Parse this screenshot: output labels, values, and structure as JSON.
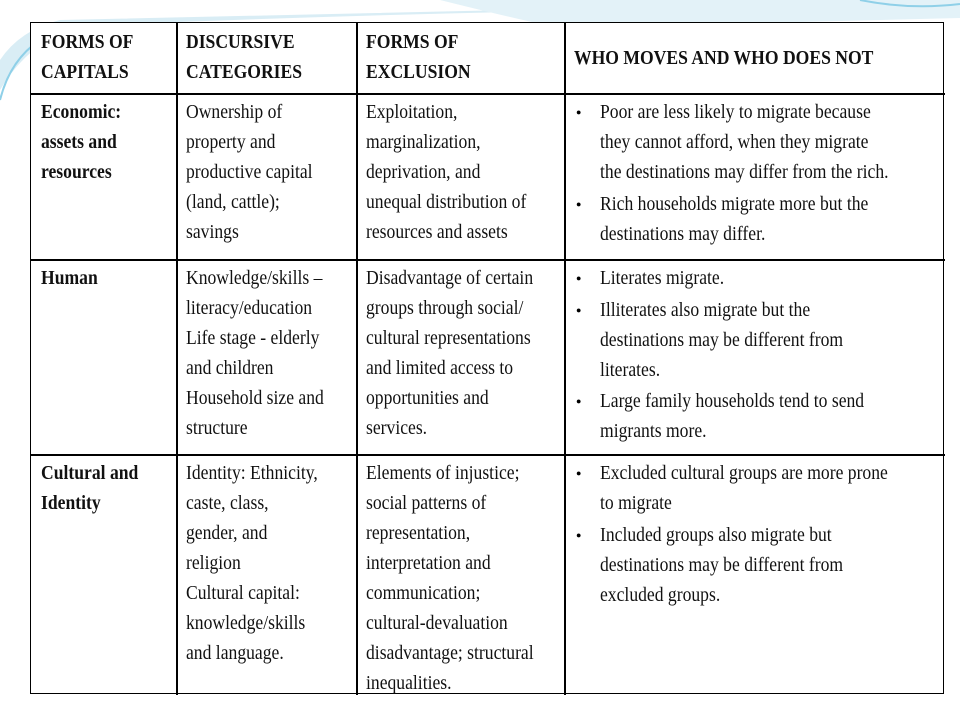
{
  "table": {
    "header": [
      [
        "FORMS OF",
        "CAPITALS"
      ],
      [
        "DISCURSIVE",
        "CATEGORIES"
      ],
      [
        "FORMS OF",
        "EXCLUSION"
      ],
      [
        "WHO MOVES AND WHO DOES NOT"
      ]
    ],
    "rows": [
      [
        [
          "Economic:",
          "assets and",
          "resources"
        ],
        [
          "Ownership of",
          "property and",
          "productive capital",
          "(land, cattle);",
          "savings"
        ],
        [
          "Exploitation,",
          "marginalization,",
          "deprivation, and",
          "unequal distribution of",
          "resources and assets"
        ],
        [
          [
            "Poor are less likely to migrate because",
            "they cannot afford, when they migrate",
            "the destinations may differ from the rich."
          ],
          [
            "Rich households migrate more but the",
            "destinations may differ."
          ]
        ]
      ],
      [
        [
          "Human"
        ],
        [
          "Knowledge/skills –",
          "literacy/education",
          "Life stage - elderly",
          "and children",
          "Household size and",
          "structure"
        ],
        [
          "Disadvantage of certain",
          "groups through social/",
          "cultural representations",
          "and limited access to",
          "opportunities and",
          "services."
        ],
        [
          [
            "Literates migrate."
          ],
          [
            "Illiterates also migrate but the",
            "destinations may be different from",
            "literates."
          ],
          [
            "Large family households tend to send",
            "migrants more."
          ]
        ]
      ],
      [
        [
          "Cultural and",
          "Identity"
        ],
        [
          "Identity: Ethnicity,",
          "caste, class,",
          "gender, and",
          "religion",
          "Cultural capital:",
          "knowledge/skills",
          "and language."
        ],
        [
          "Elements of injustice;",
          "social patterns of",
          "representation,",
          "interpretation and",
          "communication;",
          "cultural-devaluation",
          "disadvantage; structural",
          "inequalities."
        ],
        [
          [
            "Excluded cultural groups are more prone",
            "to migrate"
          ],
          [
            "Included groups also migrate but",
            "destinations may be different from",
            "excluded groups."
          ]
        ]
      ]
    ]
  }
}
